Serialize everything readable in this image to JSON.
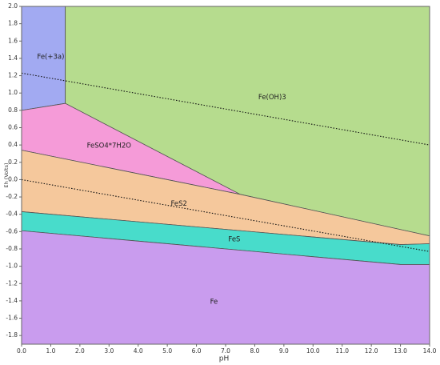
{
  "chart_data": {
    "type": "region",
    "x_label": "pH",
    "y_label": "Eh (Volts)",
    "xlim": [
      0,
      14
    ],
    "ylim": [
      -1.9,
      2.0
    ],
    "xticks": [
      {
        "value": 0,
        "label": "0.0"
      },
      {
        "value": 1,
        "label": "1.0"
      },
      {
        "value": 2,
        "label": "2.0"
      },
      {
        "value": 3,
        "label": "3.0"
      },
      {
        "value": 4,
        "label": "4.0"
      },
      {
        "value": 5,
        "label": "5.0"
      },
      {
        "value": 6,
        "label": "6.0"
      },
      {
        "value": 7,
        "label": "7.0"
      },
      {
        "value": 8,
        "label": "8.0"
      },
      {
        "value": 9,
        "label": "9.0"
      },
      {
        "value": 10,
        "label": "10.0"
      },
      {
        "value": 11,
        "label": "11.0"
      },
      {
        "value": 12,
        "label": "12.0"
      },
      {
        "value": 13,
        "label": "13.0"
      },
      {
        "value": 14,
        "label": "14.0"
      }
    ],
    "yticks": [
      {
        "value": 2,
        "label": "2.0"
      },
      1.8,
      1.6,
      1.4,
      1.2,
      {
        "value": 1,
        "label": "1.0"
      },
      0.8,
      0.6,
      0.4,
      0.2,
      {
        "value": 0,
        "label": "0.0"
      },
      -0.2,
      -0.4,
      -0.6,
      -0.8,
      {
        "value": -1,
        "label": "-1.0"
      },
      -1.2,
      -1.4,
      -1.6,
      -1.8
    ],
    "regions": [
      {
        "name": "Fe(+3a)",
        "color": "#a2aaf2",
        "x": [
          0,
          1.5,
          1.5,
          0
        ],
        "y": [
          2.0,
          2.0,
          0.88,
          0.8
        ]
      },
      {
        "name": "Fe(OH)3",
        "color": "#b6dc8e",
        "x": [
          1.5,
          14,
          14,
          7.5,
          1.5
        ],
        "y": [
          2.0,
          2.0,
          -0.65,
          -0.17,
          0.88
        ]
      },
      {
        "name": "FeSO4*7H2O",
        "color": "#f59bd8",
        "x": [
          0,
          1.5,
          7.5,
          0
        ],
        "y": [
          0.8,
          0.88,
          -0.17,
          0.34
        ]
      },
      {
        "name": "FeS2",
        "color": "#f5c89c",
        "x": [
          0,
          7.5,
          14,
          14,
          13,
          0
        ],
        "y": [
          0.34,
          -0.17,
          -0.65,
          -0.74,
          -0.75,
          -0.37
        ]
      },
      {
        "name": "FeS",
        "color": "#48dccb",
        "x": [
          0,
          13,
          14,
          14,
          13,
          0
        ],
        "y": [
          -0.37,
          -0.75,
          -0.74,
          -0.98,
          -0.98,
          -0.59
        ]
      },
      {
        "name": "Fe",
        "color": "#c99cee",
        "x": [
          0,
          13,
          14,
          14,
          0
        ],
        "y": [
          -0.59,
          -0.98,
          -0.98,
          -1.9,
          -1.9
        ]
      }
    ],
    "lines": [
      {
        "style": "dotted",
        "color": "#111111",
        "x": [
          0,
          14
        ],
        "y": [
          1.23,
          0.4
        ]
      },
      {
        "style": "dotted",
        "color": "#111111",
        "x": [
          0,
          14
        ],
        "y": [
          0.0,
          -0.83
        ]
      }
    ]
  }
}
